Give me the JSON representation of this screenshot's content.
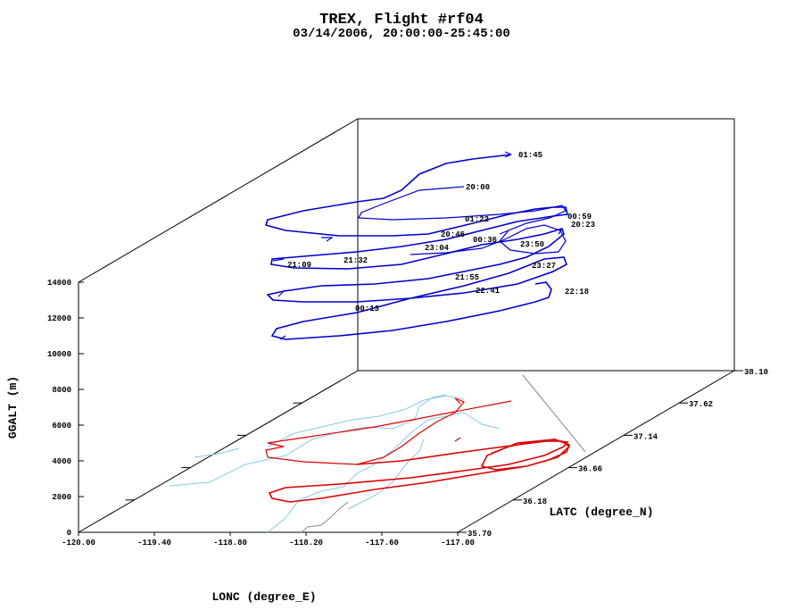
{
  "chart_data": {
    "type": "line-3d",
    "title": "TREX, Flight #rf04",
    "subtitle": "03/14/2006, 20:00:00-25:45:00",
    "x_axis": {
      "label": "LONC (degree_E)",
      "range": [
        -120.0,
        -117.0
      ],
      "ticks": [
        "-120.00",
        "-119.40",
        "-118.80",
        "-118.20",
        "-117.60",
        "-117.00"
      ]
    },
    "y_axis": {
      "label": "LATC (degree_N)",
      "range": [
        35.7,
        38.1
      ],
      "ticks": [
        "35.70",
        "36.18",
        "36.66",
        "37.14",
        "37.62",
        "38.10"
      ]
    },
    "z_axis": {
      "label": "GGALT (m)",
      "range": [
        0,
        14000
      ],
      "ticks": [
        "0",
        "2000",
        "4000",
        "6000",
        "8000",
        "10000",
        "12000",
        "14000"
      ]
    },
    "time_labels": [
      "20:00",
      "01:45",
      "01:22",
      "00:59",
      "20:23",
      "20:46",
      "00:36",
      "23:04",
      "23:50",
      "21:09",
      "21:32",
      "23:27",
      "21:55",
      "22:41",
      "22:18",
      "00:13"
    ],
    "colors": {
      "track": "#0000cc",
      "shadow": "#dd0000",
      "terrain": "#88c8e8",
      "road": "#888888",
      "axes": "#000000"
    }
  }
}
